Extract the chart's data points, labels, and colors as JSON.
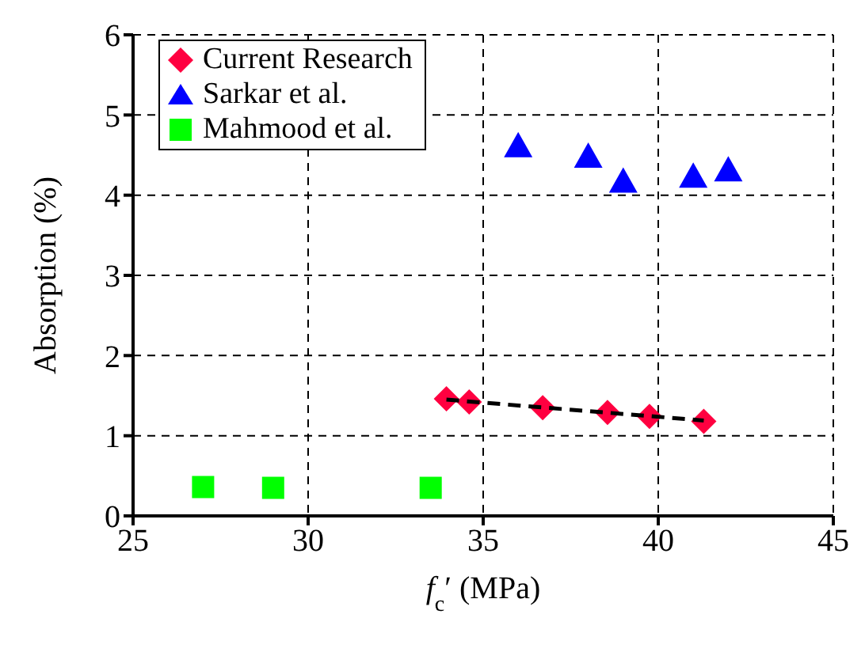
{
  "chart_data": {
    "type": "scatter",
    "xlabel": "f$_{c}$′ (MPa)",
    "ylabel": "Absorption (%)",
    "xlim": [
      25,
      45
    ],
    "xticks": [
      25,
      30,
      35,
      40,
      45
    ],
    "ylim": [
      0,
      6
    ],
    "yticks": [
      0,
      1,
      2,
      3,
      4,
      5,
      6
    ],
    "grid": true,
    "legend": "top left",
    "series": [
      {
        "name": "Current Research",
        "color": "#ff0040",
        "marker": "diamond",
        "x": [
          33.95,
          34.6,
          36.7,
          38.55,
          39.75,
          41.3
        ],
        "values": [
          1.46,
          1.42,
          1.35,
          1.29,
          1.24,
          1.18
        ]
      },
      {
        "name": "Sarkar et al.",
        "color": "#0000ff",
        "marker": "triangle",
        "x": [
          36,
          38,
          39,
          41,
          42
        ],
        "values": [
          4.61,
          4.48,
          4.17,
          4.23,
          4.31
        ]
      },
      {
        "name": "Mahmood et al.",
        "color": "#00ff00",
        "marker": "square",
        "x": [
          27,
          29,
          33.5
        ],
        "values": [
          0.36,
          0.35,
          0.35
        ]
      },
      {
        "type": "line",
        "color": "#000000",
        "marker": "none",
        "line_style": "dashed",
        "x": [
          33.95,
          41.3
        ],
        "values": [
          1.45,
          1.19
        ]
      }
    ]
  }
}
